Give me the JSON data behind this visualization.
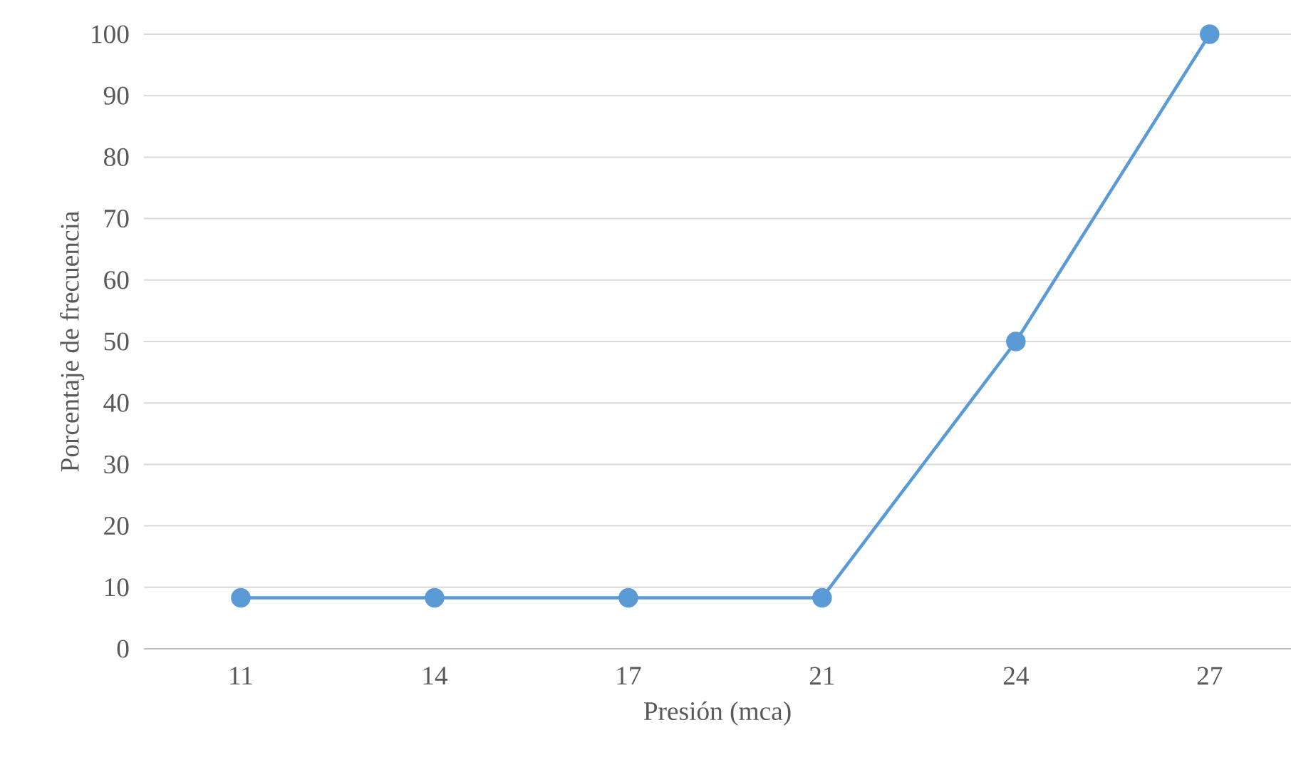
{
  "chart_data": {
    "type": "line",
    "xlabel": "Presión (mca)",
    "ylabel": "Porcentaje de frecuencia",
    "categories": [
      "11",
      "14",
      "17",
      "21",
      "24",
      "27"
    ],
    "series": [
      {
        "color": "#5b9bd5",
        "values": [
          8.3,
          8.3,
          8.3,
          8.3,
          50,
          100
        ]
      }
    ],
    "ylim": [
      0,
      100
    ],
    "yticks": [
      0,
      10,
      20,
      30,
      40,
      50,
      60,
      70,
      80,
      90,
      100
    ],
    "grid": "y",
    "marker": "circle",
    "line_style": "solid",
    "legend": false
  }
}
